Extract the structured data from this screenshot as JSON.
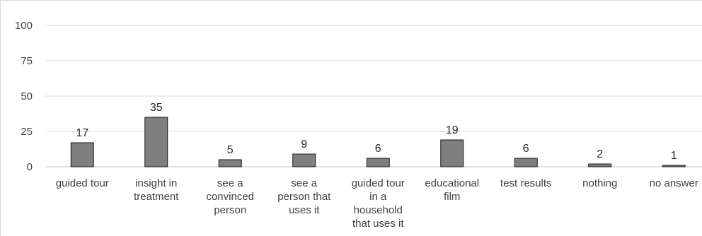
{
  "chart_data": {
    "type": "bar",
    "categories": [
      [
        "guided tour"
      ],
      [
        "insight in",
        "treatment"
      ],
      [
        "see a",
        "convinced",
        "person"
      ],
      [
        "see a",
        "person that",
        "uses it"
      ],
      [
        "guided tour",
        "in a",
        "household",
        "that uses it"
      ],
      [
        "educational",
        "film"
      ],
      [
        "test results"
      ],
      [
        "nothing"
      ],
      [
        "no answer"
      ]
    ],
    "values": [
      17,
      35,
      5,
      9,
      6,
      19,
      6,
      2,
      1
    ],
    "data_labels": [
      "17",
      "35",
      "5",
      "9",
      "6",
      "19",
      "6",
      "2",
      "1"
    ],
    "y_ticks": [
      "0",
      "25",
      "50",
      "75",
      "100"
    ],
    "ylim": [
      0,
      100
    ],
    "grid": true,
    "legend": "none",
    "colors": {
      "bar_fill": "#7f7f7f",
      "bar_stroke": "#1a1a1a",
      "gridline": "#d9d9d9",
      "border": "#d9d9d9"
    }
  }
}
